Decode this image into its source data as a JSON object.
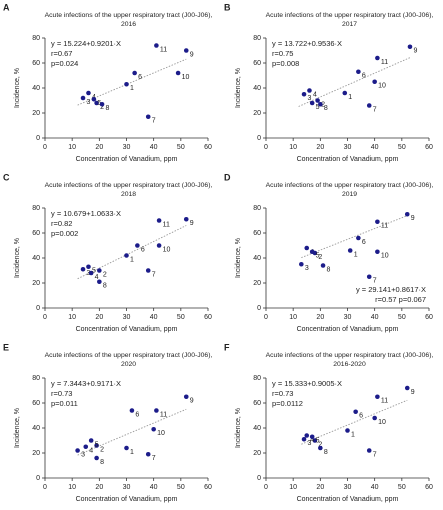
{
  "chart_data": [
    {
      "type": "scatter",
      "panel": "A",
      "title": "Acute infections of the upper respiratory tract (J00-J06),",
      "subtitle": "2016",
      "xlabel": "Concentration of Vanadium, ppm",
      "ylabel": "Incidence, %",
      "xlim": [
        0,
        60
      ],
      "xticks": [
        0,
        10,
        20,
        30,
        40,
        50,
        60
      ],
      "ylim": [
        0,
        80
      ],
      "yticks": [
        0,
        20,
        40,
        60,
        80
      ],
      "color": "#1c1c8a",
      "point_labels": [
        "1",
        "2",
        "3",
        "4",
        "5",
        "6",
        "7",
        "8",
        "9",
        "10",
        "11"
      ],
      "x": [
        30,
        19,
        14,
        16,
        18,
        33,
        38,
        21,
        52,
        49,
        41
      ],
      "values": [
        43,
        28,
        32,
        36,
        31,
        52,
        17,
        27,
        70,
        52,
        74
      ],
      "trendline": {
        "x": [
          12,
          52
        ],
        "values": [
          26.3,
          63.1
        ]
      },
      "annotation": [
        "y = 15.224+0.9201·X",
        "r=0.67",
        "p=0.024"
      ],
      "annotation_corner": "upper left"
    },
    {
      "type": "scatter",
      "panel": "B",
      "title": "Acute infections of the upper respiratory tract (J00-J06),",
      "subtitle": "2017",
      "xlabel": "Concentration of Vanadium, ppm",
      "ylabel": "Incidence, %",
      "xlim": [
        0,
        60
      ],
      "xticks": [
        0,
        10,
        20,
        30,
        40,
        50,
        60
      ],
      "ylim": [
        0,
        80
      ],
      "yticks": [
        0,
        20,
        40,
        60,
        80
      ],
      "color": "#1c1c8a",
      "point_labels": [
        "1",
        "2",
        "3",
        "4",
        "5",
        "6",
        "7",
        "8",
        "9",
        "10",
        "11"
      ],
      "x": [
        29,
        19,
        14,
        16,
        17,
        34,
        38,
        20,
        53,
        40,
        41
      ],
      "values": [
        36,
        30,
        35,
        38,
        28,
        53,
        26,
        27,
        73,
        45,
        64
      ],
      "trendline": {
        "x": [
          12,
          53
        ],
        "values": [
          25.2,
          64.3
        ]
      },
      "annotation": [
        "y = 13.722+0.9536·X",
        "r=0.75",
        "p=0.008"
      ],
      "annotation_corner": "upper left"
    },
    {
      "type": "scatter",
      "panel": "C",
      "title": "Acute infections of the upper respiratory tract (J00-J06),",
      "subtitle": "2018",
      "xlabel": "Concentration of Vanadium, ppm",
      "ylabel": "Incidence, %",
      "xlim": [
        0,
        60
      ],
      "xticks": [
        0,
        10,
        20,
        30,
        40,
        50,
        60
      ],
      "ylim": [
        0,
        80
      ],
      "yticks": [
        0,
        20,
        40,
        60,
        80
      ],
      "color": "#1c1c8a",
      "point_labels": [
        "1",
        "2",
        "3",
        "4",
        "5",
        "6",
        "7",
        "8",
        "9",
        "10",
        "11"
      ],
      "x": [
        30,
        20,
        14,
        17,
        16,
        34,
        38,
        20,
        52,
        42,
        42
      ],
      "values": [
        42,
        30,
        31,
        28,
        33,
        50,
        30,
        21,
        71,
        50,
        70
      ],
      "trendline": {
        "x": [
          12,
          52
        ],
        "values": [
          23.4,
          66.0
        ]
      },
      "annotation": [
        "y = 10.679+1.0633·X",
        "r=0.82",
        "p=0.002"
      ],
      "annotation_corner": "upper left"
    },
    {
      "type": "scatter",
      "panel": "D",
      "title": "Acute infections of the upper respiratory tract (J00-J06),",
      "subtitle": "2019",
      "xlabel": "Concentration of Vanadium, ppm",
      "ylabel": "Incidence, %",
      "xlim": [
        0,
        60
      ],
      "xticks": [
        0,
        10,
        20,
        30,
        40,
        50,
        60
      ],
      "ylim": [
        0,
        80
      ],
      "yticks": [
        0,
        20,
        40,
        60,
        80
      ],
      "color": "#1c1c8a",
      "point_labels": [
        "1",
        "2",
        "3",
        "4",
        "5",
        "6",
        "7",
        "8",
        "9",
        "10",
        "11"
      ],
      "x": [
        31,
        18,
        13,
        15,
        17,
        34,
        38,
        21,
        52,
        41,
        41
      ],
      "values": [
        46,
        44,
        35,
        48,
        45,
        56,
        25,
        34,
        75,
        45,
        69
      ],
      "trendline": {
        "x": [
          13,
          52
        ],
        "values": [
          40.3,
          73.9
        ]
      },
      "annotation": [
        "y = 29.141+0.8617·X",
        "r=0.57  p=0.067"
      ],
      "annotation_corner": "lower right"
    },
    {
      "type": "scatter",
      "panel": "E",
      "title": "Acute infections of the upper respiratory tract (J00-J06),",
      "subtitle": "2020",
      "xlabel": "Concentration of Vanadium, ppm",
      "ylabel": "Incidence, %",
      "xlim": [
        0,
        60
      ],
      "xticks": [
        0,
        10,
        20,
        30,
        40,
        50,
        60
      ],
      "ylim": [
        0,
        80
      ],
      "yticks": [
        0,
        20,
        40,
        60,
        80
      ],
      "color": "#1c1c8a",
      "point_labels": [
        "1",
        "2",
        "3",
        "4",
        "5",
        "6",
        "7",
        "8",
        "9",
        "10",
        "11"
      ],
      "x": [
        30,
        19,
        12,
        15,
        17,
        32,
        38,
        19,
        52,
        40,
        41
      ],
      "values": [
        24,
        26,
        22,
        25,
        30,
        54,
        19,
        16,
        65,
        39,
        54
      ],
      "trendline": {
        "x": [
          12,
          52
        ],
        "values": [
          18.3,
          55.0
        ]
      },
      "annotation": [
        "y = 7.3443+0.9171·X",
        "r=0.73",
        "p=0.011"
      ],
      "annotation_corner": "upper left"
    },
    {
      "type": "scatter",
      "panel": "F",
      "title": "Acute infections of the upper respiratory tract (J00-J06),",
      "subtitle": "2016-2020",
      "xlabel": "Concentration of Vanadium, ppm",
      "ylabel": "Incidence, %",
      "xlim": [
        0,
        60
      ],
      "xticks": [
        0,
        10,
        20,
        30,
        40,
        50,
        60
      ],
      "ylim": [
        0,
        80
      ],
      "yticks": [
        0,
        20,
        40,
        60,
        80
      ],
      "color": "#1c1c8a",
      "point_labels": [
        "1",
        "2",
        "3",
        "4",
        "5",
        "6",
        "7",
        "8",
        "9",
        "10",
        "11"
      ],
      "x": [
        30,
        18,
        14,
        15,
        17,
        33,
        38,
        20,
        52,
        40,
        41
      ],
      "values": [
        38,
        30,
        31,
        34,
        33,
        53,
        22,
        24,
        72,
        48,
        65
      ],
      "trendline": {
        "x": [
          13,
          52
        ],
        "values": [
          27.0,
          62.2
        ]
      },
      "annotation": [
        "y = 15.333+0.9005·X",
        "r=0.73",
        "p=0.0112"
      ],
      "annotation_corner": "upper left"
    }
  ]
}
